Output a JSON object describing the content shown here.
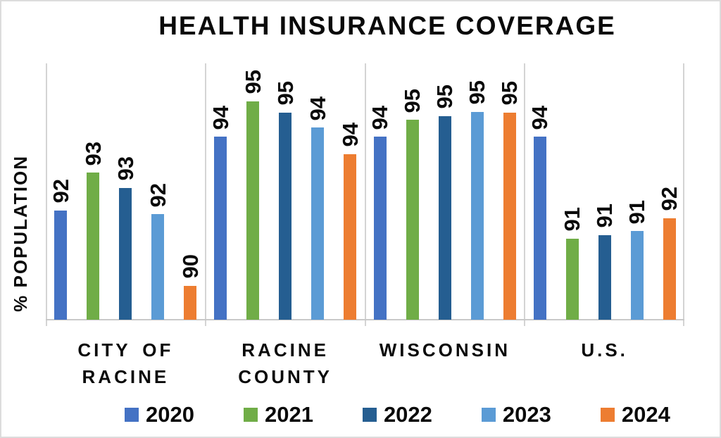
{
  "chart_data": {
    "type": "bar",
    "title": "HEALTH INSURANCE COVERAGE",
    "ylabel": "% POPULATION",
    "categories": [
      "CITY OF RACINE",
      "RACINE COUNTY",
      "WISCONSIN",
      "U.S."
    ],
    "category_display_lines": [
      [
        "CITY OF",
        "RACINE"
      ],
      [
        "RACINE",
        "COUNTY"
      ],
      [
        "WISCONSIN"
      ],
      [
        "U.S."
      ]
    ],
    "series": [
      {
        "name": "2020",
        "color": "#4472C4",
        "values": [
          92,
          94,
          94,
          94
        ],
        "bar_heights_est": [
          92.0,
          93.95,
          93.95,
          93.95
        ]
      },
      {
        "name": "2021",
        "color": "#70AD47",
        "values": [
          93,
          95,
          95,
          91
        ],
        "bar_heights_est": [
          93.0,
          94.9,
          94.4,
          91.25
        ]
      },
      {
        "name": "2022",
        "color": "#255E91",
        "values": [
          93,
          95,
          95,
          91
        ],
        "bar_heights_est": [
          92.6,
          94.6,
          94.5,
          91.35
        ]
      },
      {
        "name": "2023",
        "color": "#5B9BD5",
        "values": [
          92,
          94,
          95,
          91
        ],
        "bar_heights_est": [
          91.9,
          94.2,
          94.62,
          91.45
        ]
      },
      {
        "name": "2024",
        "color": "#ED7D31",
        "values": [
          90,
          94,
          95,
          92
        ],
        "bar_heights_est": [
          90.0,
          93.5,
          94.6,
          91.8
        ]
      }
    ],
    "ylim": [
      89.1,
      95.9
    ],
    "y_tick_labels_shown": false,
    "data_labels": "rotated-90-above-bars",
    "grid": "vertical-category-separators",
    "legend_position": "bottom",
    "gridline_color": "#d4d4d4",
    "frame_border_color": "#dcdcdc",
    "text_color": "#0a0a0a",
    "background_color": "#ffffff"
  }
}
